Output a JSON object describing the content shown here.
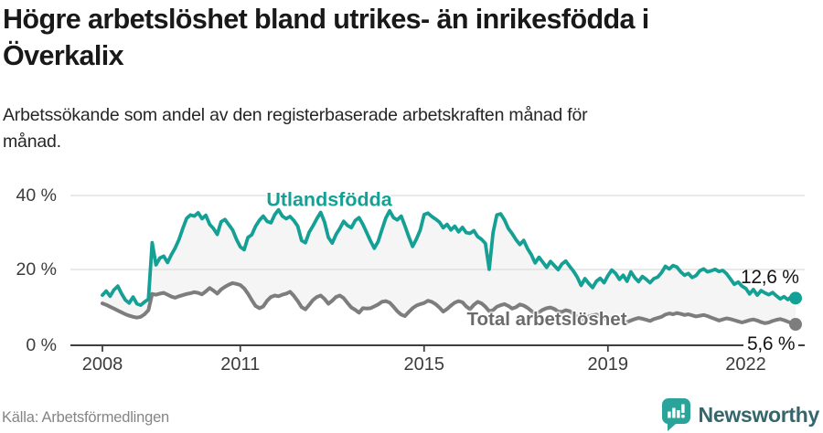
{
  "header": {
    "title": "Högre arbetslöshet bland utrikes- än inrikesfödda i Överkalix",
    "subtitle": "Arbetssökande som andel av den registerbaserade arbetskraften månad för månad."
  },
  "chart_data": {
    "type": "line",
    "title": "Högre arbetslöshet bland utrikes- än inrikesfödda i Överkalix",
    "xlabel": "",
    "ylabel": "",
    "x_unit": "month",
    "x_start": "2008-01",
    "x_end": "2023-02",
    "ylim": [
      0,
      44
    ],
    "grid": true,
    "legend_position": "inline-labels",
    "band_fill_between_series": true,
    "y_ticks": [
      {
        "value": 0,
        "label": "0 %"
      },
      {
        "value": 20,
        "label": "20 %"
      },
      {
        "value": 40,
        "label": "40 %"
      }
    ],
    "x_ticks": [
      {
        "year": 2008,
        "label": "2008"
      },
      {
        "year": 2011,
        "label": "2011"
      },
      {
        "year": 2015,
        "label": "2015"
      },
      {
        "year": 2019,
        "label": "2019"
      },
      {
        "year": 2022,
        "label": "2022"
      }
    ],
    "series": [
      {
        "name": "Utlandsfödda",
        "color": "#14a094",
        "end_label": "12,6 %",
        "end_value": 12.6,
        "values": [
          13.4,
          14.5,
          13.1,
          14.8,
          15.8,
          13.8,
          12.1,
          11.3,
          12.9,
          11.1,
          10.7,
          11.6,
          12.3,
          27.4,
          21.5,
          23.3,
          23.8,
          22.1,
          24.2,
          26.0,
          28.3,
          31.2,
          33.9,
          34.8,
          34.5,
          35.4,
          33.8,
          34.7,
          32.3,
          31.2,
          29.6,
          33.0,
          33.6,
          32.2,
          30.8,
          28.3,
          26.3,
          25.5,
          28.8,
          29.5,
          31.8,
          33.4,
          34.5,
          33.1,
          32.7,
          34.9,
          36.2,
          34.5,
          33.8,
          34.4,
          33.3,
          31.8,
          28.0,
          27.4,
          30.2,
          31.9,
          33.8,
          35.5,
          32.9,
          28.8,
          27.3,
          29.6,
          31.2,
          33.1,
          32.0,
          31.4,
          33.3,
          34.1,
          32.3,
          30.1,
          27.9,
          25.9,
          27.7,
          30.9,
          34.0,
          35.9,
          34.1,
          33.5,
          34.5,
          31.9,
          29.0,
          26.4,
          28.4,
          30.8,
          34.9,
          35.3,
          34.4,
          33.7,
          32.9,
          31.4,
          32.3,
          30.8,
          31.8,
          30.3,
          31.5,
          30.1,
          29.9,
          30.6,
          29.0,
          28.3,
          27.2,
          20.3,
          30.1,
          34.8,
          35.1,
          33.5,
          31.2,
          29.8,
          28.2,
          26.9,
          28.0,
          25.8,
          24.2,
          22.0,
          23.5,
          22.2,
          20.8,
          22.4,
          21.3,
          20.2,
          21.7,
          22.5,
          21.1,
          19.8,
          18.2,
          16.0,
          17.8,
          16.5,
          15.4,
          17.1,
          17.9,
          16.7,
          18.6,
          20.1,
          19.2,
          17.6,
          18.7,
          17.1,
          19.6,
          18.1,
          17.0,
          18.4,
          17.6,
          16.7,
          17.8,
          18.2,
          19.4,
          21.1,
          20.4,
          21.3,
          20.9,
          19.6,
          18.7,
          19.2,
          18.1,
          18.6,
          19.9,
          20.4,
          19.6,
          19.9,
          20.3,
          19.7,
          20.0,
          19.1,
          17.7,
          16.3,
          16.9,
          15.8,
          15.2,
          13.7,
          14.9,
          13.4,
          14.6,
          14.0,
          13.5,
          14.1,
          13.2,
          12.4,
          13.0,
          12.2,
          13.1,
          12.6
        ]
      },
      {
        "name": "Total arbetslöshet",
        "color": "#7d7d7d",
        "end_label": "5,6 %",
        "end_value": 5.6,
        "values": [
          11.2,
          10.8,
          10.3,
          9.8,
          9.3,
          8.8,
          8.3,
          7.9,
          7.6,
          7.4,
          7.6,
          8.3,
          9.4,
          13.7,
          13.5,
          13.8,
          14.0,
          13.5,
          13.0,
          12.7,
          13.1,
          13.4,
          13.7,
          13.9,
          14.2,
          14.0,
          13.6,
          14.4,
          15.3,
          14.6,
          13.8,
          14.9,
          15.6,
          16.2,
          16.6,
          16.4,
          16.1,
          15.2,
          13.8,
          12.1,
          10.5,
          9.9,
          10.4,
          11.9,
          12.9,
          13.3,
          13.1,
          13.5,
          13.8,
          14.3,
          13.2,
          11.8,
          10.2,
          9.6,
          10.8,
          12.1,
          12.9,
          13.3,
          12.4,
          11.1,
          11.9,
          12.9,
          13.3,
          12.6,
          11.3,
          10.1,
          9.5,
          8.7,
          9.9,
          9.8,
          9.9,
          10.4,
          10.9,
          11.6,
          11.8,
          11.4,
          10.3,
          9.1,
          8.2,
          7.8,
          8.9,
          9.9,
          10.6,
          11.0,
          11.3,
          11.9,
          11.6,
          11.0,
          10.1,
          9.0,
          9.7,
          10.6,
          11.4,
          11.8,
          11.5,
          10.4,
          9.6,
          10.8,
          11.6,
          11.2,
          10.3,
          9.1,
          9.4,
          10.3,
          10.7,
          11.0,
          10.5,
          9.8,
          10.2,
          10.9,
          10.6,
          10.0,
          9.2,
          8.4,
          8.8,
          9.5,
          9.9,
          10.1,
          9.7,
          9.0,
          8.9,
          9.4,
          9.1,
          8.4,
          7.6,
          6.8,
          7.1,
          7.7,
          8.0,
          8.2,
          7.8,
          7.2,
          6.9,
          7.4,
          7.1,
          6.7,
          6.5,
          6.2,
          6.6,
          7.0,
          7.3,
          7.1,
          6.8,
          6.5,
          7.0,
          7.3,
          7.6,
          8.2,
          8.5,
          8.3,
          8.6,
          8.4,
          8.1,
          8.3,
          8.0,
          7.7,
          7.9,
          8.1,
          7.8,
          7.4,
          7.0,
          6.6,
          6.9,
          7.2,
          7.0,
          6.7,
          6.4,
          6.1,
          6.4,
          6.7,
          6.9,
          6.6,
          6.2,
          5.9,
          6.1,
          6.5,
          6.8,
          7.0,
          6.7,
          6.3,
          5.9,
          5.6
        ]
      }
    ]
  },
  "colors": {
    "series_foreign_born": "#14a094",
    "series_total": "#7d7d7d",
    "band_fill": "#f5f5f5",
    "gridline": "#dcdcdc",
    "axis": "#3f3f3f",
    "brand_teal": "#2aa39a",
    "brand_text": "#35666c"
  },
  "footer": {
    "source": "Källa: Arbetsförmedlingen",
    "brand": "Newsworthy"
  }
}
